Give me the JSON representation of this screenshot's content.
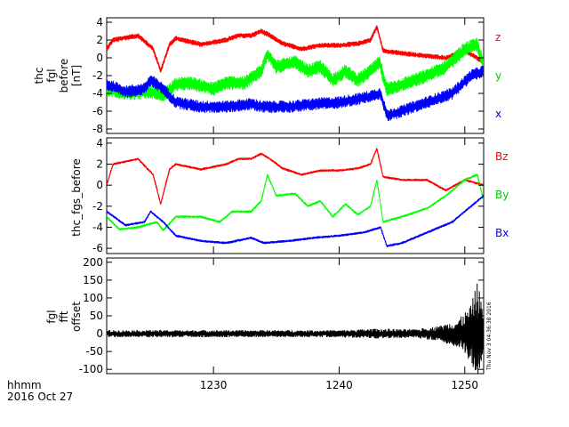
{
  "chart_data": [
    {
      "type": "line",
      "panel": "fgl",
      "ylabel": [
        "thc",
        "fgl",
        "before",
        "[nT]"
      ],
      "ylim": [
        -8.5,
        4.5
      ],
      "yticks": [
        -8,
        -6,
        -4,
        -2,
        0,
        2,
        4
      ],
      "grid": false,
      "legend_placement": "right",
      "series": [
        {
          "name": "z",
          "color": "#ff0000",
          "noise": 0.3,
          "points": [
            [
              1221.5,
              1.0
            ],
            [
              1222.0,
              2.0
            ],
            [
              1224.0,
              2.5
            ],
            [
              1225.2,
              1.0
            ],
            [
              1225.8,
              -1.5
            ],
            [
              1226.5,
              1.5
            ],
            [
              1227.0,
              2.2
            ],
            [
              1229.0,
              1.5
            ],
            [
              1231.0,
              2.0
            ],
            [
              1232.0,
              2.5
            ],
            [
              1233.0,
              2.5
            ],
            [
              1233.8,
              3.0
            ],
            [
              1234.5,
              2.5
            ],
            [
              1235.5,
              1.6
            ],
            [
              1237.0,
              1.0
            ],
            [
              1238.5,
              1.4
            ],
            [
              1240.0,
              1.4
            ],
            [
              1241.5,
              1.6
            ],
            [
              1242.5,
              2.0
            ],
            [
              1243.0,
              3.5
            ],
            [
              1243.5,
              0.8
            ],
            [
              1245.0,
              0.5
            ],
            [
              1247.0,
              0.2
            ],
            [
              1248.5,
              0.0
            ],
            [
              1250.0,
              0.8
            ],
            [
              1251.5,
              -0.5
            ]
          ]
        },
        {
          "name": "y",
          "color": "#00ff00",
          "noise": 0.8,
          "points": [
            [
              1221.5,
              -3.5
            ],
            [
              1223.0,
              -4.0
            ],
            [
              1225.0,
              -3.8
            ],
            [
              1226.0,
              -4.2
            ],
            [
              1227.0,
              -3.0
            ],
            [
              1228.0,
              -2.8
            ],
            [
              1230.0,
              -3.5
            ],
            [
              1231.0,
              -2.8
            ],
            [
              1232.5,
              -2.8
            ],
            [
              1233.8,
              -1.5
            ],
            [
              1234.3,
              0.5
            ],
            [
              1235.0,
              -1.0
            ],
            [
              1236.5,
              -0.5
            ],
            [
              1237.5,
              -1.5
            ],
            [
              1238.5,
              -1.0
            ],
            [
              1239.5,
              -2.5
            ],
            [
              1240.5,
              -1.5
            ],
            [
              1241.5,
              -2.5
            ],
            [
              1242.5,
              -1.5
            ],
            [
              1243.2,
              -0.5
            ],
            [
              1243.8,
              -3.5
            ],
            [
              1245.0,
              -3.0
            ],
            [
              1247.0,
              -2.0
            ],
            [
              1248.5,
              -1.0
            ],
            [
              1250.0,
              1.0
            ],
            [
              1251.0,
              1.5
            ],
            [
              1251.5,
              -1.0
            ]
          ]
        },
        {
          "name": "x",
          "color": "#0000ff",
          "noise": 0.7,
          "points": [
            [
              1221.5,
              -3.0
            ],
            [
              1223.0,
              -3.8
            ],
            [
              1224.5,
              -3.5
            ],
            [
              1225.0,
              -2.5
            ],
            [
              1226.0,
              -3.5
            ],
            [
              1227.0,
              -5.0
            ],
            [
              1229.0,
              -5.5
            ],
            [
              1231.0,
              -5.5
            ],
            [
              1233.0,
              -5.2
            ],
            [
              1234.0,
              -5.5
            ],
            [
              1236.0,
              -5.5
            ],
            [
              1238.0,
              -5.2
            ],
            [
              1240.0,
              -5.0
            ],
            [
              1242.0,
              -4.5
            ],
            [
              1243.3,
              -4.0
            ],
            [
              1243.8,
              -6.5
            ],
            [
              1245.0,
              -6.0
            ],
            [
              1247.0,
              -5.0
            ],
            [
              1249.0,
              -4.0
            ],
            [
              1250.5,
              -2.0
            ],
            [
              1251.5,
              -1.5
            ]
          ]
        }
      ]
    },
    {
      "type": "line",
      "panel": "fgs",
      "ylabel": [
        "thc_fgs_before"
      ],
      "ylim": [
        -6.5,
        4.5
      ],
      "yticks": [
        -6,
        -4,
        -2,
        0,
        2,
        4
      ],
      "grid": false,
      "legend_placement": "right",
      "series": [
        {
          "name": "Bz",
          "color": "#ff0000",
          "noise": 0.12,
          "points": [
            [
              1221.5,
              0.0
            ],
            [
              1222.0,
              2.0
            ],
            [
              1224.0,
              2.5
            ],
            [
              1225.2,
              1.0
            ],
            [
              1225.8,
              -1.8
            ],
            [
              1226.5,
              1.5
            ],
            [
              1227.0,
              2.0
            ],
            [
              1229.0,
              1.5
            ],
            [
              1231.0,
              2.0
            ],
            [
              1232.0,
              2.5
            ],
            [
              1233.0,
              2.5
            ],
            [
              1233.8,
              3.0
            ],
            [
              1234.5,
              2.5
            ],
            [
              1235.5,
              1.6
            ],
            [
              1237.0,
              1.0
            ],
            [
              1238.5,
              1.4
            ],
            [
              1240.0,
              1.4
            ],
            [
              1241.5,
              1.6
            ],
            [
              1242.5,
              2.0
            ],
            [
              1243.0,
              3.5
            ],
            [
              1243.5,
              0.8
            ],
            [
              1245.0,
              0.5
            ],
            [
              1247.0,
              0.5
            ],
            [
              1248.5,
              -0.5
            ],
            [
              1250.0,
              0.5
            ],
            [
              1251.5,
              0.0
            ]
          ]
        },
        {
          "name": "By",
          "color": "#00ff00",
          "noise": 0.12,
          "points": [
            [
              1221.5,
              -3.0
            ],
            [
              1222.5,
              -4.2
            ],
            [
              1224.0,
              -4.0
            ],
            [
              1225.5,
              -3.5
            ],
            [
              1226.0,
              -4.3
            ],
            [
              1227.0,
              -3.0
            ],
            [
              1229.0,
              -3.0
            ],
            [
              1230.5,
              -3.5
            ],
            [
              1231.5,
              -2.5
            ],
            [
              1233.0,
              -2.5
            ],
            [
              1233.8,
              -1.5
            ],
            [
              1234.3,
              1.0
            ],
            [
              1235.0,
              -1.0
            ],
            [
              1236.5,
              -0.8
            ],
            [
              1237.5,
              -2.0
            ],
            [
              1238.5,
              -1.5
            ],
            [
              1239.5,
              -3.0
            ],
            [
              1240.5,
              -1.8
            ],
            [
              1241.5,
              -2.8
            ],
            [
              1242.5,
              -2.0
            ],
            [
              1243.0,
              0.5
            ],
            [
              1243.5,
              -3.5
            ],
            [
              1245.0,
              -3.0
            ],
            [
              1247.0,
              -2.2
            ],
            [
              1248.5,
              -1.0
            ],
            [
              1250.0,
              0.5
            ],
            [
              1251.0,
              1.0
            ],
            [
              1251.5,
              -1.5
            ]
          ]
        },
        {
          "name": "Bx",
          "color": "#0000ff",
          "noise": 0.12,
          "points": [
            [
              1221.5,
              -2.5
            ],
            [
              1223.0,
              -3.8
            ],
            [
              1224.5,
              -3.5
            ],
            [
              1225.0,
              -2.5
            ],
            [
              1226.0,
              -3.5
            ],
            [
              1227.0,
              -4.8
            ],
            [
              1229.0,
              -5.3
            ],
            [
              1231.0,
              -5.5
            ],
            [
              1233.0,
              -5.0
            ],
            [
              1234.0,
              -5.5
            ],
            [
              1236.0,
              -5.3
            ],
            [
              1238.0,
              -5.0
            ],
            [
              1240.0,
              -4.8
            ],
            [
              1242.0,
              -4.5
            ],
            [
              1243.3,
              -4.0
            ],
            [
              1243.8,
              -5.8
            ],
            [
              1245.0,
              -5.5
            ],
            [
              1247.0,
              -4.5
            ],
            [
              1249.0,
              -3.5
            ],
            [
              1250.5,
              -2.0
            ],
            [
              1251.5,
              -1.0
            ]
          ]
        }
      ]
    },
    {
      "type": "line",
      "panel": "offset",
      "ylabel": [
        "fgl",
        "fft",
        "offset"
      ],
      "ylim": [
        -112,
        212
      ],
      "yticks": [
        -100,
        -50,
        0,
        50,
        100,
        150,
        200
      ],
      "grid": false,
      "series": [
        {
          "name": "",
          "color": "#000000",
          "amplitude_points": [
            [
              1221.5,
              10
            ],
            [
              1240.0,
              10
            ],
            [
              1243.0,
              14
            ],
            [
              1246.0,
              12
            ],
            [
              1248.0,
              22
            ],
            [
              1249.5,
              40
            ],
            [
              1250.5,
              80
            ],
            [
              1251.0,
              150
            ],
            [
              1251.5,
              60
            ]
          ]
        }
      ]
    }
  ],
  "x_axis": {
    "xlim": [
      1221.5,
      1251.5
    ],
    "ticks": [
      1230,
      1240,
      1250
    ],
    "tick_labels": [
      "1230",
      "1240",
      "1250"
    ],
    "label": "hhmm",
    "date": "2016 Oct 27"
  },
  "timestamp": "Thu Nov  3 04:36:38 2016"
}
